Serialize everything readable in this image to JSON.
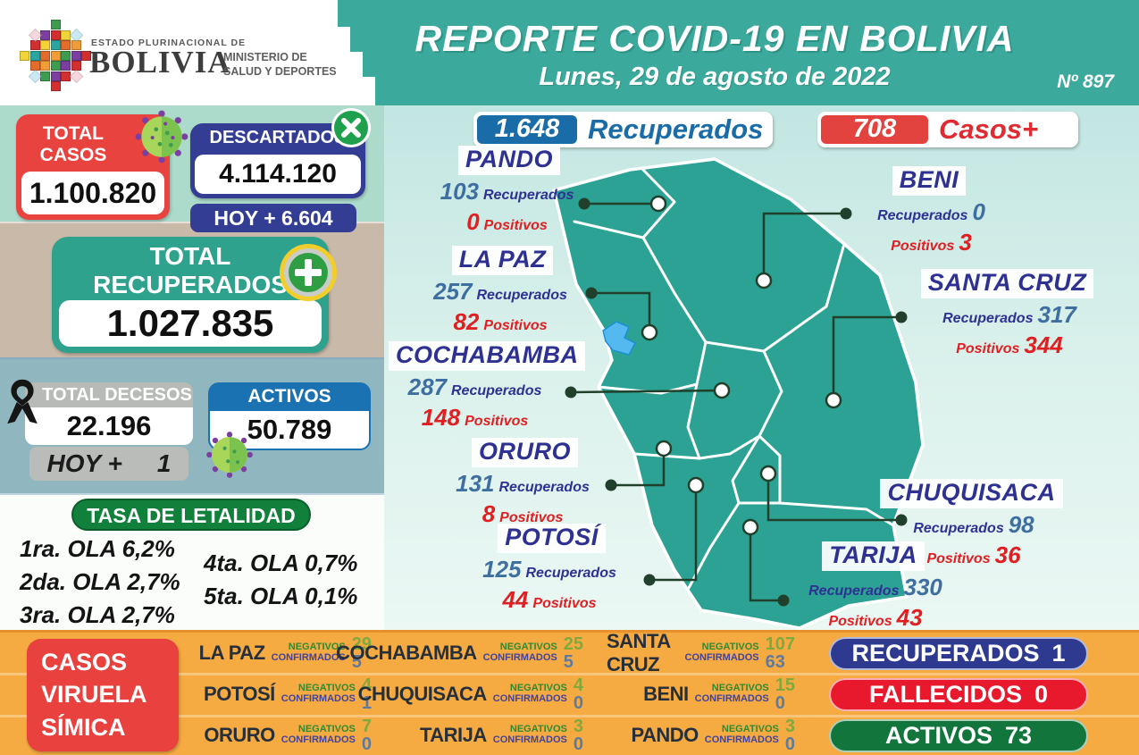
{
  "header": {
    "logo_pretitle": "ESTADO PLURINACIONAL DE",
    "logo_title": "BOLIVIA",
    "ministry_line1": "MINISTERIO DE",
    "ministry_line2": "SALUD Y DEPORTES",
    "title": "REPORTE COVID-19 EN BOLIVIA",
    "date": "Lunes, 29 de agosto de 2022",
    "report_number": "Nº 897"
  },
  "summary": {
    "total_casos": {
      "label_line1": "TOTAL",
      "label_line2": "CASOS",
      "value": "1.100.820"
    },
    "descartados": {
      "label": "DESCARTADOS",
      "value": "4.114.120",
      "hoy": "HOY + 6.604"
    },
    "total_recuperados": {
      "label_line1": "TOTAL",
      "label_line2": "RECUPERADOS",
      "value": "1.027.835"
    },
    "total_decesos": {
      "label": "TOTAL DECESOS",
      "value": "22.196",
      "hoy_label": "HOY +",
      "hoy_value": "1"
    },
    "activos": {
      "label": "ACTIVOS",
      "value": "50.789"
    },
    "tasa_letalidad": {
      "title": "TASA DE LETALIDAD",
      "left_rows": [
        "1ra. OLA 6,2%",
        "2da. OLA 2,7%",
        "3ra. OLA 2,7%"
      ],
      "right_rows": [
        "4ta. OLA 0,7%",
        "5ta. OLA 0,1%"
      ]
    }
  },
  "daily_badges": {
    "recuperados": {
      "value": "1.648",
      "label": "Recuperados"
    },
    "casos": {
      "value": "708",
      "label": "Casos+"
    }
  },
  "map_departments": [
    {
      "id": "pando",
      "name": "PANDO",
      "recuperados": "103",
      "positivos": "0",
      "recuperados_label": "Recuperados",
      "positivos_label": "Positivos"
    },
    {
      "id": "la_paz",
      "name": "LA PAZ",
      "recuperados": "257",
      "positivos": "82",
      "recuperados_label": "Recuperados",
      "positivos_label": "Positivos"
    },
    {
      "id": "cochabamba",
      "name": "COCHABAMBA",
      "recuperados": "287",
      "positivos": "148",
      "recuperados_label": "Recuperados",
      "positivos_label": "Positivos"
    },
    {
      "id": "oruro",
      "name": "ORURO",
      "recuperados": "131",
      "positivos": "8",
      "recuperados_label": "Recuperados",
      "positivos_label": "Positivos"
    },
    {
      "id": "potosi",
      "name": "POTOSÍ",
      "recuperados": "125",
      "positivos": "44",
      "recuperados_label": "Recuperados",
      "positivos_label": "Positivos"
    },
    {
      "id": "beni",
      "name": "BENI",
      "recuperados": "0",
      "positivos": "3",
      "recuperados_label": "Recuperados",
      "positivos_label": "Positivos"
    },
    {
      "id": "santa_cruz",
      "name": "SANTA CRUZ",
      "recuperados": "317",
      "positivos": "344",
      "recuperados_label": "Recuperados",
      "positivos_label": "Positivos"
    },
    {
      "id": "chuquisaca",
      "name": "CHUQUISACA",
      "recuperados": "98",
      "positivos": "36",
      "recuperados_label": "Recuperados",
      "positivos_label": "Positivos"
    },
    {
      "id": "tarija",
      "name": "TARIJA",
      "recuperados": "330",
      "positivos": "43",
      "recuperados_label": "Recuperados",
      "positivos_label": "Positivos"
    }
  ],
  "viruela": {
    "title_lines": [
      "CASOS",
      "VIRUELA",
      "SÍMICA"
    ],
    "negativos_label": "NEGATIVOS",
    "confirmados_label": "CONFIRMADOS",
    "rows": [
      {
        "name": "LA PAZ",
        "negativos": "29",
        "confirmados": "5"
      },
      {
        "name": "COCHABAMBA",
        "negativos": "25",
        "confirmados": "5"
      },
      {
        "name": "SANTA CRUZ",
        "negativos": "107",
        "confirmados": "63"
      },
      {
        "name": "POTOSÍ",
        "negativos": "4",
        "confirmados": "1"
      },
      {
        "name": "CHUQUISACA",
        "negativos": "4",
        "confirmados": "0"
      },
      {
        "name": "BENI",
        "negativos": "15",
        "confirmados": "0"
      },
      {
        "name": "ORURO",
        "negativos": "7",
        "confirmados": "0"
      },
      {
        "name": "TARIJA",
        "negativos": "3",
        "confirmados": "0"
      },
      {
        "name": "PANDO",
        "negativos": "3",
        "confirmados": "0"
      }
    ],
    "totals": [
      {
        "label": "RECUPERADOS",
        "value": "1",
        "color": "#2D3A90"
      },
      {
        "label": "FALLECIDOS",
        "value": "0",
        "color": "#E8182D"
      },
      {
        "label": "ACTIVOS",
        "value": "73",
        "color": "#12753C"
      }
    ]
  },
  "colors": {
    "header_teal": "#3BA99B",
    "map_teal": "#2CA294",
    "accent_red": "#E8433E",
    "accent_indigo": "#343D94",
    "accent_blue": "#1A6CA8",
    "strip_orange": "#F6AA42",
    "tasa_green": "#11803B"
  }
}
